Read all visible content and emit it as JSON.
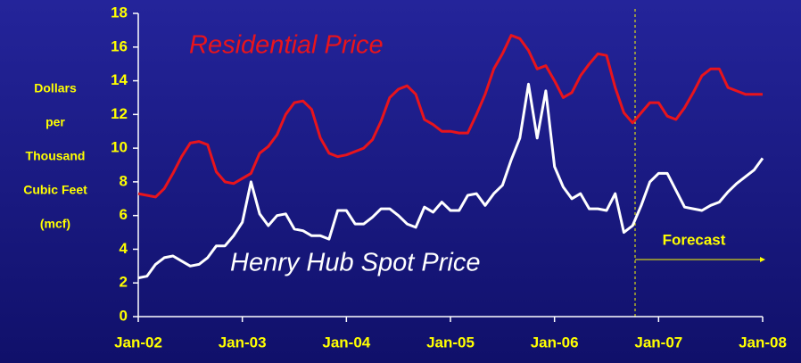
{
  "chart_data": {
    "type": "line",
    "ylabel": [
      "Dollars",
      "per",
      "Thousand",
      "Cubic Feet",
      "(mcf)"
    ],
    "categories": [
      "Jan-02",
      null,
      null,
      null,
      null,
      null,
      null,
      null,
      null,
      null,
      null,
      null,
      "Jan-03",
      null,
      null,
      null,
      null,
      null,
      null,
      null,
      null,
      null,
      null,
      null,
      "Jan-04",
      null,
      null,
      null,
      null,
      null,
      null,
      null,
      null,
      null,
      null,
      null,
      "Jan-05",
      null,
      null,
      null,
      null,
      null,
      null,
      null,
      null,
      null,
      null,
      null,
      "Jan-06",
      null,
      null,
      null,
      null,
      null,
      null,
      null,
      null,
      null,
      null,
      null,
      "Jan-07",
      null,
      null,
      null,
      null,
      null,
      null,
      null,
      null,
      null,
      null,
      null,
      "Jan-08"
    ],
    "series": [
      {
        "name": "Residential Price",
        "color": "#e8141c",
        "values": [
          7.3,
          7.2,
          7.1,
          7.6,
          8.5,
          9.5,
          10.3,
          10.4,
          10.2,
          8.6,
          8.0,
          7.9,
          8.2,
          8.5,
          9.7,
          10.1,
          10.8,
          12.0,
          12.7,
          12.8,
          12.3,
          10.6,
          9.7,
          9.5,
          9.6,
          9.8,
          10.0,
          10.5,
          11.6,
          13.0,
          13.5,
          13.7,
          13.2,
          11.7,
          11.4,
          11.0,
          11.0,
          10.9,
          10.9,
          12.0,
          13.2,
          14.7,
          15.6,
          16.7,
          16.5,
          15.8,
          14.7,
          14.9,
          14.0,
          13.0,
          13.3,
          14.3,
          15.0,
          15.6,
          15.5,
          13.6,
          12.1,
          11.5,
          12.1,
          12.7,
          12.7,
          11.9,
          11.7,
          12.4,
          13.3,
          14.3,
          14.7,
          14.7,
          13.6,
          13.4,
          13.2,
          13.2,
          13.2
        ]
      },
      {
        "name": "Henry Hub Spot Price",
        "color": "#ffffff",
        "values": [
          2.3,
          2.4,
          3.1,
          3.5,
          3.6,
          3.3,
          3.0,
          3.1,
          3.5,
          4.2,
          4.2,
          4.8,
          5.6,
          8.0,
          6.1,
          5.4,
          6.0,
          6.1,
          5.2,
          5.1,
          4.8,
          4.8,
          4.6,
          6.3,
          6.3,
          5.5,
          5.5,
          5.9,
          6.4,
          6.4,
          6.0,
          5.5,
          5.3,
          6.5,
          6.2,
          6.8,
          6.3,
          6.3,
          7.2,
          7.3,
          6.6,
          7.3,
          7.8,
          9.3,
          10.6,
          13.8,
          10.6,
          13.4,
          8.9,
          7.7,
          7.0,
          7.3,
          6.4,
          6.4,
          6.3,
          7.3,
          5.0,
          5.4,
          6.6,
          8.0,
          8.5,
          8.5,
          7.5,
          6.5,
          6.4,
          6.3,
          6.6,
          6.8,
          7.4,
          7.9,
          8.3,
          8.7,
          9.4
        ]
      }
    ],
    "annotations": [
      "Forecast"
    ],
    "ylim": [
      0,
      18
    ],
    "yticks": [
      0,
      2,
      4,
      6,
      8,
      10,
      12,
      14,
      16,
      18
    ]
  }
}
